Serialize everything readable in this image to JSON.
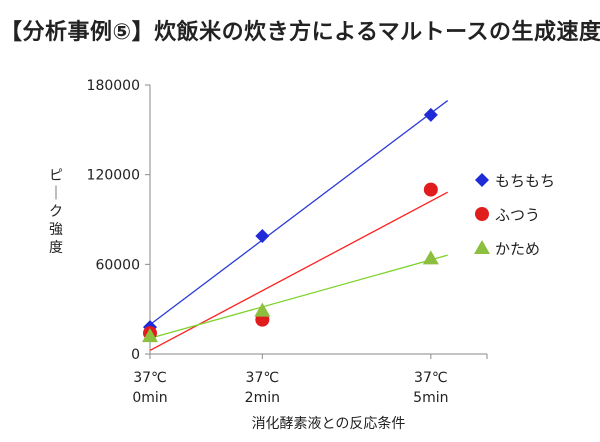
{
  "title": "【分析事例⑤】炊飯米の炊き方によるマルトースの生成速度",
  "chart_data": {
    "type": "scatter",
    "title": "【分析事例⑤】炊飯米の炊き方によるマルトースの生成速度",
    "xlabel": "消化酵素液との反応条件",
    "ylabel": "ピーク強度",
    "categories": [
      [
        "37℃",
        "0min"
      ],
      [
        "37℃",
        "2min"
      ],
      [
        "37℃",
        "5min"
      ]
    ],
    "x": [
      0,
      2,
      5
    ],
    "xlim": [
      0,
      6
    ],
    "ylim": [
      0,
      180000
    ],
    "yticks": [
      0,
      60000,
      120000,
      180000
    ],
    "ytick_labels": [
      "0",
      "60000",
      "120000",
      "180000"
    ],
    "grid": false,
    "legend_position": "right",
    "trendlines": true,
    "series": [
      {
        "name": "もちもち",
        "marker": "diamond",
        "color": "#1f2bd6",
        "line_color": "#2b3ad9",
        "values": [
          18000,
          79000,
          160000
        ]
      },
      {
        "name": "ふつう",
        "marker": "circle",
        "color": "#e01c1c",
        "line_color": "#ff2020",
        "values": [
          14000,
          23000,
          110000
        ]
      },
      {
        "name": "かため",
        "marker": "triangle",
        "color": "#8dbf3f",
        "line_color": "#7cd32a",
        "values": [
          12000,
          29000,
          64000
        ]
      }
    ]
  }
}
